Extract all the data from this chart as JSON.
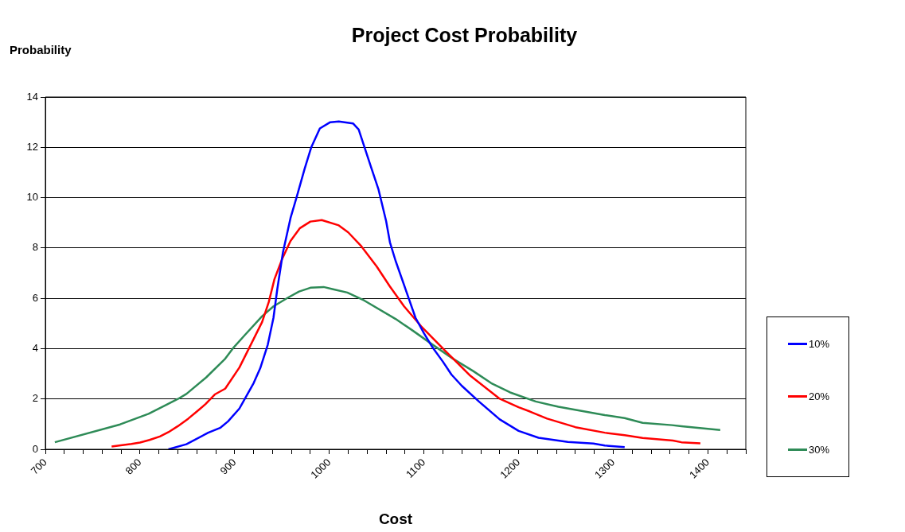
{
  "chart_data": {
    "type": "line",
    "title": "Project Cost Probability",
    "xlabel": "Cost",
    "ylabel": "Probability",
    "xlim": [
      700,
      1440
    ],
    "ylim": [
      0,
      14
    ],
    "xticks": [
      700,
      {
        "value": 720,
        "label": null
      },
      {
        "value": 740,
        "label": null
      },
      {
        "value": 760,
        "label": null
      },
      {
        "value": 780,
        "label": null
      },
      800,
      {
        "value": 820,
        "label": null
      },
      {
        "value": 840,
        "label": null
      },
      {
        "value": 860,
        "label": null
      },
      {
        "value": 880,
        "label": null
      },
      900,
      {
        "value": 920,
        "label": null
      },
      {
        "value": 940,
        "label": null
      },
      {
        "value": 960,
        "label": null
      },
      {
        "value": 980,
        "label": null
      },
      1000,
      {
        "value": 1020,
        "label": null
      },
      {
        "value": 1040,
        "label": null
      },
      {
        "value": 1060,
        "label": null
      },
      {
        "value": 1080,
        "label": null
      },
      1100,
      {
        "value": 1120,
        "label": null
      },
      {
        "value": 1140,
        "label": null
      },
      {
        "value": 1160,
        "label": null
      },
      {
        "value": 1180,
        "label": null
      },
      1200,
      {
        "value": 1220,
        "label": null
      },
      {
        "value": 1240,
        "label": null
      },
      {
        "value": 1260,
        "label": null
      },
      {
        "value": 1280,
        "label": null
      },
      1300,
      {
        "value": 1320,
        "label": null
      },
      {
        "value": 1340,
        "label": null
      },
      {
        "value": 1360,
        "label": null
      },
      {
        "value": 1380,
        "label": null
      },
      1400,
      {
        "value": 1420,
        "label": null
      },
      {
        "value": 1440,
        "label": null
      }
    ],
    "yticks": [
      0,
      2,
      4,
      6,
      8,
      10,
      12,
      14
    ],
    "grid": "y",
    "legend": "right",
    "marker": "none",
    "series": [
      {
        "name": "10%",
        "color": "#0000ff",
        "x": [
          830,
          849,
          872,
          885,
          893,
          905,
          920,
          927,
          935,
          941,
          945,
          951,
          959,
          966,
          974,
          981,
          990,
          1001,
          1010,
          1025,
          1031,
          1044,
          1052,
          1060,
          1064,
          1070,
          1081,
          1091,
          1100,
          1109,
          1120,
          1129,
          1140,
          1158,
          1180,
          1200,
          1221,
          1252,
          1279,
          1291,
          1312
        ],
        "values": [
          0,
          0.2,
          0.66,
          0.86,
          1.11,
          1.62,
          2.63,
          3.22,
          4.16,
          5.23,
          6.36,
          7.83,
          9.19,
          10.09,
          11.16,
          12.01,
          12.75,
          13,
          13.03,
          12.95,
          12.71,
          11.22,
          10.32,
          9.07,
          8.23,
          7.49,
          6.31,
          5.23,
          4.61,
          4.05,
          3.48,
          2.97,
          2.52,
          1.9,
          1.19,
          0.73,
          0.46,
          0.29,
          0.23,
          0.15,
          0.09
        ]
      },
      {
        "name": "20%",
        "color": "#ff0000",
        "x": [
          770,
          791,
          800,
          810,
          821,
          830,
          840,
          851,
          860,
          869,
          879,
          890,
          905,
          920,
          929,
          936,
          942,
          950,
          959,
          969,
          980,
          992,
          1010,
          1020,
          1034,
          1050,
          1064,
          1079,
          1097,
          1122,
          1149,
          1180,
          1200,
          1212,
          1230,
          1260,
          1291,
          1312,
          1331,
          1363,
          1372,
          1392
        ],
        "values": [
          0.11,
          0.21,
          0.27,
          0.37,
          0.51,
          0.68,
          0.92,
          1.22,
          1.5,
          1.79,
          2.18,
          2.41,
          3.25,
          4.38,
          5.06,
          5.85,
          6.76,
          7.55,
          8.28,
          8.79,
          9.05,
          9.11,
          8.9,
          8.62,
          8.06,
          7.27,
          6.47,
          5.68,
          4.89,
          3.93,
          2.92,
          2.01,
          1.67,
          1.5,
          1.22,
          0.88,
          0.66,
          0.56,
          0.45,
          0.35,
          0.28,
          0.24
        ]
      },
      {
        "name": "30%",
        "color": "#2e8b57",
        "x": [
          710,
          779,
          809,
          840,
          849,
          870,
          890,
          899,
          911,
          929,
          941,
          956,
          968,
          980,
          994,
          1004,
          1019,
          1037,
          1070,
          1088,
          1109,
          1131,
          1152,
          1171,
          1191,
          1218,
          1242,
          1291,
          1312,
          1331,
          1362,
          1372,
          1413
        ],
        "values": [
          0.28,
          0.99,
          1.41,
          2.0,
          2.2,
          2.86,
          3.6,
          4.05,
          4.55,
          5.29,
          5.68,
          6.02,
          6.27,
          6.42,
          6.45,
          6.36,
          6.23,
          5.91,
          5.18,
          4.72,
          4.16,
          3.59,
          3.11,
          2.63,
          2.26,
          1.9,
          1.69,
          1.36,
          1.24,
          1.05,
          0.96,
          0.92,
          0.77
        ]
      }
    ]
  }
}
